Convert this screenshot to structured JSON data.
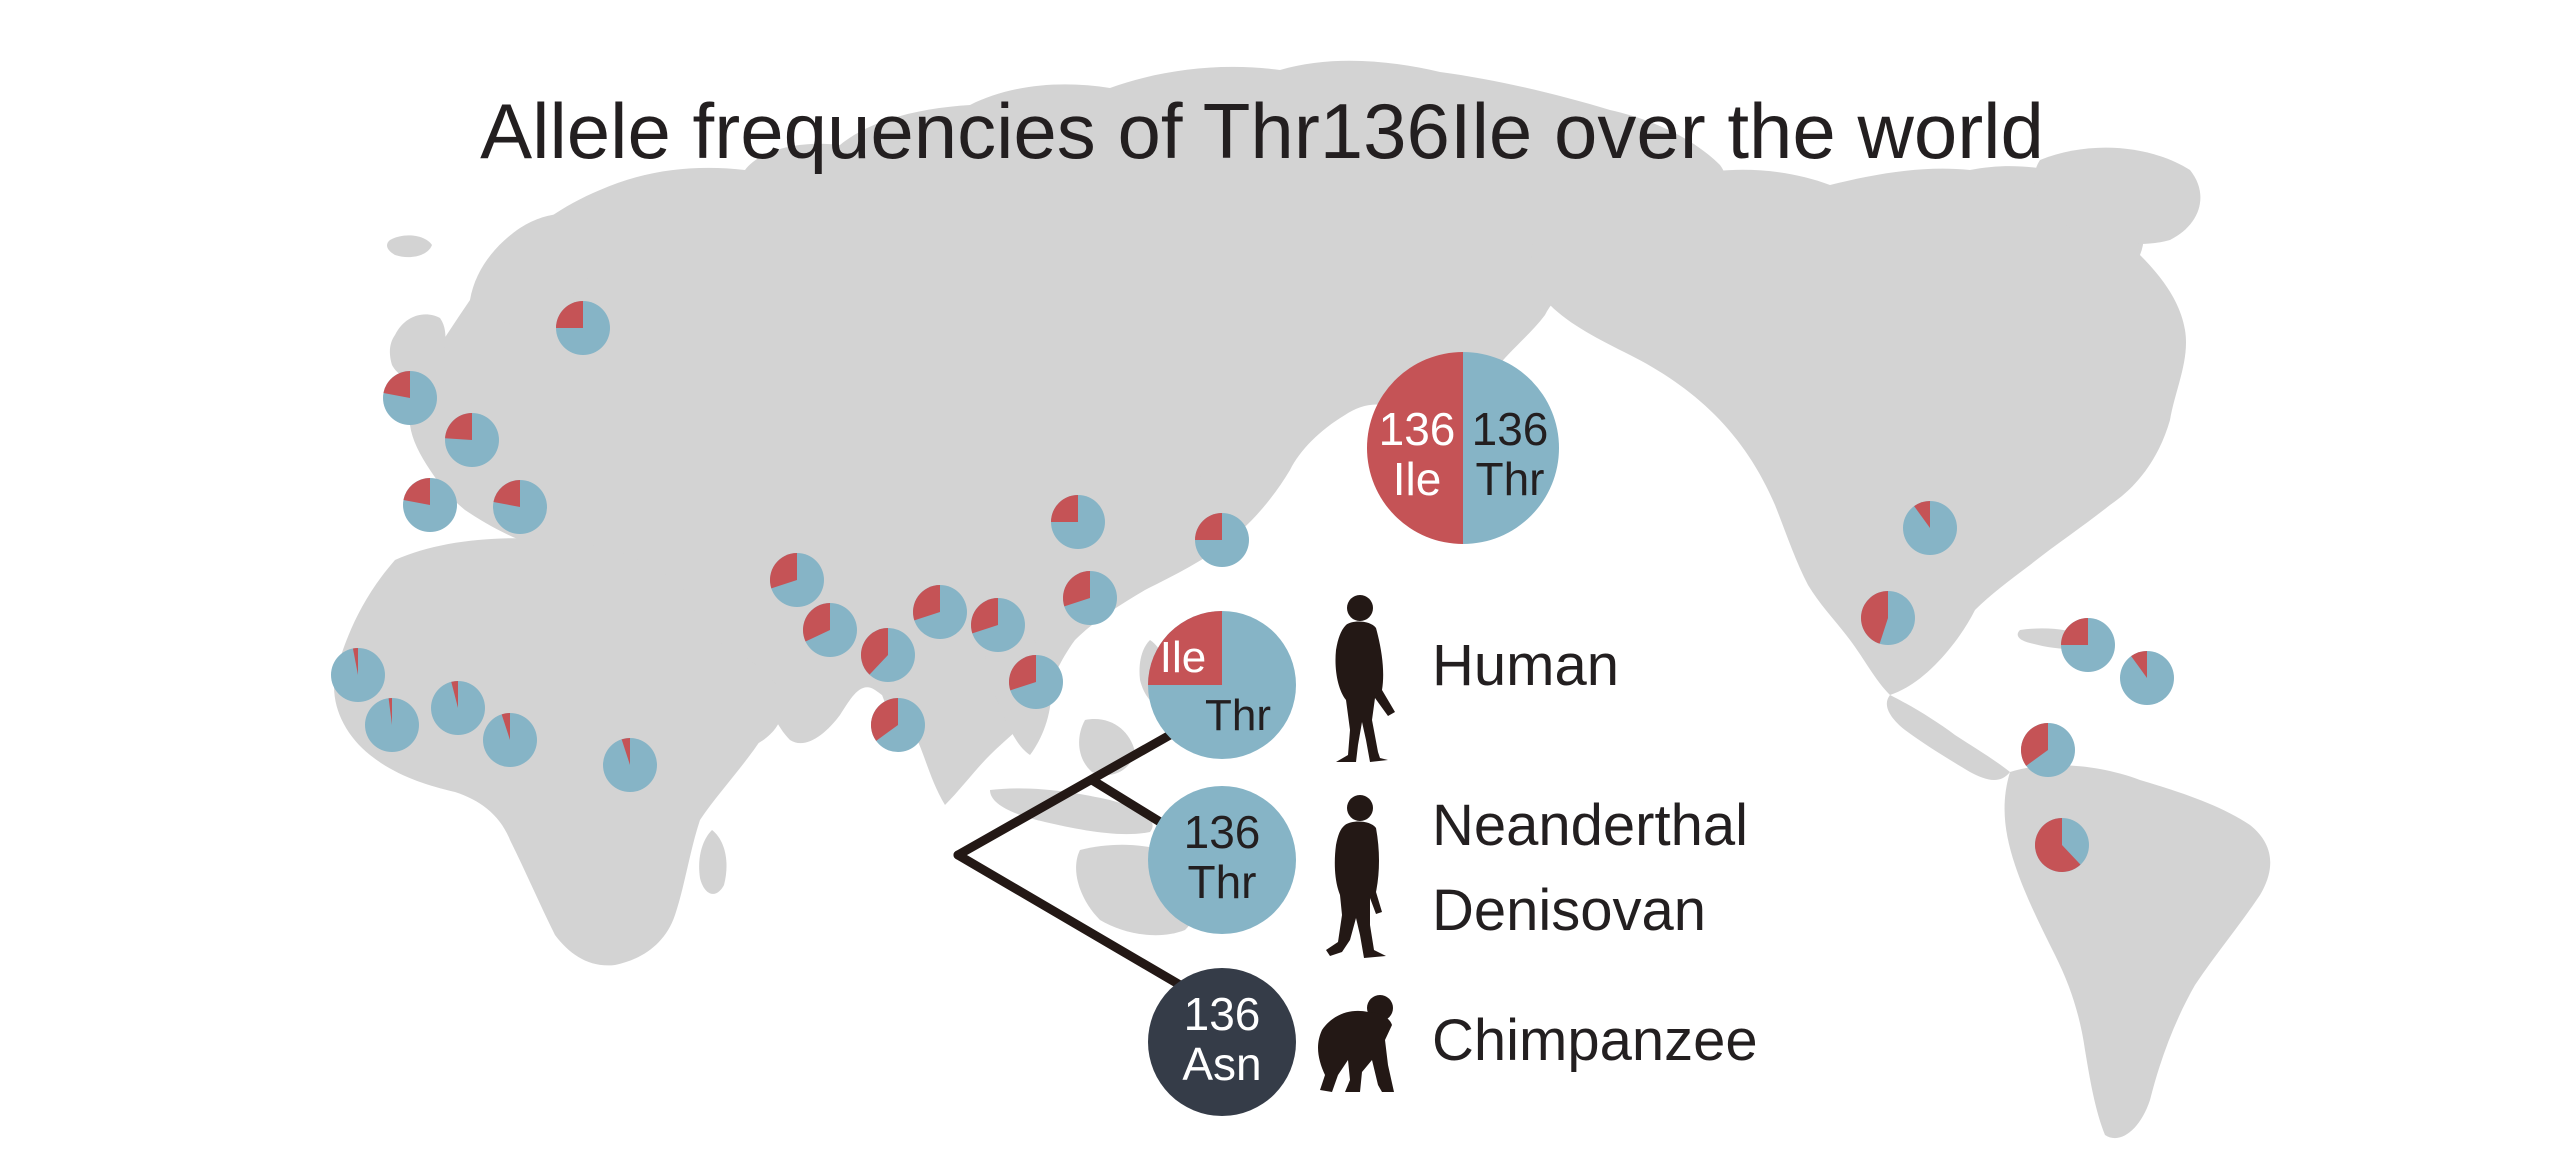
{
  "title": "Allele frequencies of Thr136Ile over the world",
  "colors": {
    "ile": "#c55356",
    "thr": "#86b4c6",
    "asn": "#353c48",
    "land": "#d3d3d3",
    "tree": "#231815",
    "text": "#231f20"
  },
  "legend": {
    "left_line1": "136",
    "left_line2": "Ile",
    "right_line1": "136",
    "right_line2": "Thr"
  },
  "species": [
    {
      "name": "Human",
      "icon": "human-icon",
      "ile_fraction": 0.25,
      "text_ile": "Ile",
      "text_thr": "Thr"
    },
    {
      "name": "Neanderthal",
      "icon": "neanderthal-icon",
      "text_line1": "136",
      "text_line2": "Thr"
    },
    {
      "name": "Denisovan"
    },
    {
      "name": "Chimpanzee",
      "icon": "chimpanzee-icon",
      "text_line1": "136",
      "text_line2": "Asn"
    }
  ],
  "populations": [
    {
      "region": "northern-europe",
      "ile_fraction": 0.25
    },
    {
      "region": "british-isles",
      "ile_fraction": 0.22
    },
    {
      "region": "western-europe",
      "ile_fraction": 0.24
    },
    {
      "region": "iberia",
      "ile_fraction": 0.22
    },
    {
      "region": "italy",
      "ile_fraction": 0.22
    },
    {
      "region": "west-africa-1",
      "ile_fraction": 0.03
    },
    {
      "region": "west-africa-2",
      "ile_fraction": 0.02
    },
    {
      "region": "west-africa-3",
      "ile_fraction": 0.04
    },
    {
      "region": "central-africa",
      "ile_fraction": 0.05
    },
    {
      "region": "east-africa",
      "ile_fraction": 0.05
    },
    {
      "region": "south-asia-1",
      "ile_fraction": 0.3
    },
    {
      "region": "south-asia-2",
      "ile_fraction": 0.32
    },
    {
      "region": "south-asia-3",
      "ile_fraction": 0.38
    },
    {
      "region": "south-asia-4",
      "ile_fraction": 0.3
    },
    {
      "region": "south-asia-5",
      "ile_fraction": 0.35
    },
    {
      "region": "bengal",
      "ile_fraction": 0.3
    },
    {
      "region": "southeast-asia",
      "ile_fraction": 0.3
    },
    {
      "region": "north-china",
      "ile_fraction": 0.25
    },
    {
      "region": "south-china",
      "ile_fraction": 0.3
    },
    {
      "region": "japan",
      "ile_fraction": 0.25
    },
    {
      "region": "north-america",
      "ile_fraction": 0.1
    },
    {
      "region": "mexico",
      "ile_fraction": 0.45
    },
    {
      "region": "caribbean-1",
      "ile_fraction": 0.25
    },
    {
      "region": "caribbean-2",
      "ile_fraction": 0.1
    },
    {
      "region": "colombia",
      "ile_fraction": 0.35
    },
    {
      "region": "peru",
      "ile_fraction": 0.62
    }
  ]
}
